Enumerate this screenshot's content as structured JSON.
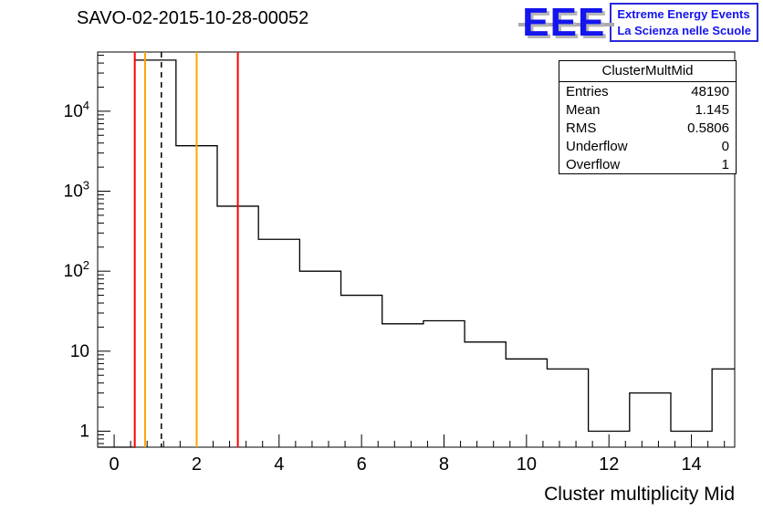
{
  "page": {
    "title": "SAVO-02-2015-10-28-00052"
  },
  "logo": {
    "eee": "EEE",
    "line1": "Extreme Energy Events",
    "line2": "La Scienza nelle Scuole",
    "color": "#1515ef"
  },
  "stats_box": {
    "title": "ClusterMultMid",
    "rows": [
      {
        "label": "Entries",
        "value": "48190"
      },
      {
        "label": "Mean",
        "value": "1.145"
      },
      {
        "label": "RMS",
        "value": "0.5806"
      },
      {
        "label": "Underflow",
        "value": "0"
      },
      {
        "label": "Overflow",
        "value": "1"
      }
    ]
  },
  "chart_data": {
    "type": "histogram-step",
    "title": "SAVO-02-2015-10-28-00052",
    "xlabel": "Cluster multiplicity Mid",
    "ylabel": "",
    "yscale": "log",
    "xlim": [
      -0.4,
      15.05
    ],
    "ylim_log10": [
      -0.2,
      4.74
    ],
    "x_major_tick_values": [
      0,
      2,
      4,
      6,
      8,
      10,
      12,
      14
    ],
    "x_major_tick_labels": [
      "0",
      "2",
      "4",
      "6",
      "8",
      "10",
      "12",
      "14"
    ],
    "x_minor_tick_step": 0.4,
    "y_decade_values": [
      1,
      10,
      100,
      1000,
      10000
    ],
    "y_decade_labels": [
      "1",
      "10",
      "10^2",
      "10^3",
      "10^4"
    ],
    "bin_edges": [
      -0.5,
      0.5,
      1.5,
      2.5,
      3.5,
      4.5,
      5.5,
      6.5,
      7.5,
      8.5,
      9.5,
      10.5,
      11.5,
      12.5,
      13.5,
      14.5,
      15.5
    ],
    "bin_values": [
      0,
      43500,
      3700,
      650,
      250,
      100,
      50,
      22,
      24,
      13,
      8,
      6,
      1,
      3,
      1,
      6
    ],
    "line_color": "#000000",
    "vlines": [
      {
        "x": 0.5,
        "color": "#ff0000",
        "style": "solid"
      },
      {
        "x": 0.75,
        "color": "#ffa500",
        "style": "solid"
      },
      {
        "x": 1.145,
        "color": "#000000",
        "style": "dashed"
      },
      {
        "x": 2,
        "color": "#ffa500",
        "style": "solid"
      },
      {
        "x": 3,
        "color": "#ff0000",
        "style": "solid"
      }
    ],
    "grid": false,
    "legend": "stats-box-top-right"
  }
}
